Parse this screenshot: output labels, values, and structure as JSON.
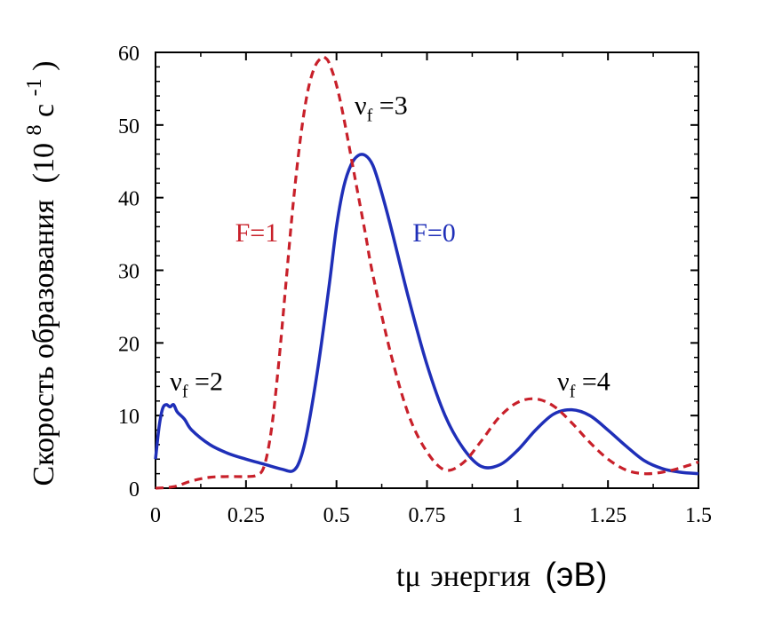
{
  "chart_data": {
    "type": "line",
    "xlabel_prefix": "tμ",
    "xlabel_main": "энергия",
    "xlabel_unit": "(эВ)",
    "ylabel_main": "Скорость образования",
    "ylabel_unit_open": "(10",
    "ylabel_unit_exp": "8",
    "ylabel_unit_mid": " с",
    "ylabel_unit_exp2": "-1",
    "ylabel_unit_close": ")",
    "xlim": [
      0,
      1.5
    ],
    "ylim": [
      0,
      60
    ],
    "xticks": [
      0,
      0.25,
      0.5,
      0.75,
      1,
      1.25,
      1.5
    ],
    "xtick_labels": [
      "0",
      "0.25",
      "0.5",
      "0.75",
      "1",
      "1.25",
      "1.5"
    ],
    "yticks": [
      0,
      10,
      20,
      30,
      40,
      50,
      60
    ],
    "ytick_labels": [
      "0",
      "10",
      "20",
      "30",
      "40",
      "50",
      "60"
    ],
    "annotations": [
      {
        "base": "ν",
        "sub": "f",
        "rest": " =2",
        "x": 0.04,
        "y": 13.5
      },
      {
        "base": "ν",
        "sub": "f",
        "rest": " =3",
        "x": 0.55,
        "y": 51.5
      },
      {
        "base": "ν",
        "sub": "f",
        "rest": " =4",
        "x": 1.11,
        "y": 13.5
      }
    ],
    "series": [
      {
        "name": "F=0",
        "color": "#1f2fb8",
        "style": "solid",
        "label_pos": {
          "x": 0.71,
          "y": 34
        },
        "x": [
          0,
          0.01,
          0.02,
          0.03,
          0.04,
          0.05,
          0.06,
          0.08,
          0.1,
          0.15,
          0.2,
          0.25,
          0.3,
          0.35,
          0.38,
          0.4,
          0.42,
          0.45,
          0.48,
          0.5,
          0.52,
          0.54,
          0.56,
          0.58,
          0.6,
          0.62,
          0.65,
          0.7,
          0.75,
          0.8,
          0.85,
          0.9,
          0.95,
          1.0,
          1.05,
          1.1,
          1.15,
          1.2,
          1.25,
          1.3,
          1.35,
          1.4,
          1.45,
          1.5
        ],
        "y": [
          4.0,
          8.5,
          11.0,
          11.5,
          11.2,
          11.5,
          10.5,
          9.5,
          8.0,
          6.0,
          4.8,
          4.0,
          3.3,
          2.6,
          2.4,
          4.0,
          8.0,
          17.0,
          28.0,
          36.0,
          41.5,
          44.5,
          45.8,
          45.8,
          44.5,
          41.5,
          36.0,
          26.0,
          17.0,
          10.0,
          5.5,
          3.0,
          3.2,
          5.2,
          8.0,
          10.2,
          10.8,
          10.0,
          8.0,
          5.8,
          3.8,
          2.7,
          2.2,
          2.0
        ]
      },
      {
        "name": "F=1",
        "color": "#c8202a",
        "style": "dashed",
        "label_pos": {
          "x": 0.22,
          "y": 34
        },
        "x": [
          0,
          0.05,
          0.1,
          0.15,
          0.2,
          0.25,
          0.28,
          0.3,
          0.32,
          0.34,
          0.36,
          0.38,
          0.4,
          0.42,
          0.44,
          0.46,
          0.47,
          0.48,
          0.5,
          0.52,
          0.55,
          0.58,
          0.6,
          0.65,
          0.7,
          0.75,
          0.8,
          0.85,
          0.9,
          0.95,
          1.0,
          1.05,
          1.1,
          1.15,
          1.2,
          1.25,
          1.3,
          1.35,
          1.4,
          1.45,
          1.5
        ],
        "y": [
          0,
          0.2,
          1.0,
          1.5,
          1.6,
          1.6,
          1.8,
          3.0,
          8.0,
          17.0,
          28.0,
          39.0,
          48.0,
          54.5,
          58.0,
          59.3,
          59.2,
          58.5,
          55.5,
          51.0,
          43.0,
          35.0,
          29.5,
          18.5,
          10.0,
          5.0,
          2.5,
          3.5,
          6.5,
          9.8,
          11.8,
          12.3,
          11.3,
          9.0,
          6.3,
          4.0,
          2.5,
          2.0,
          2.2,
          2.8,
          3.6
        ]
      }
    ]
  }
}
